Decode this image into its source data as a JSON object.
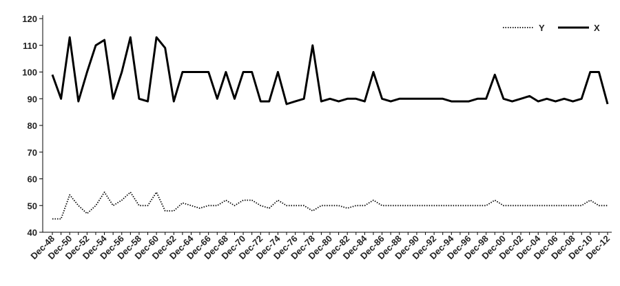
{
  "chart_data": {
    "type": "line",
    "categories": [
      "Dec-48",
      null,
      "Dec-50",
      null,
      "Dec-52",
      null,
      "Dec-54",
      null,
      "Dec-56",
      null,
      "Dec-58",
      null,
      "Dec-60",
      null,
      "Dec-62",
      null,
      "Dec-64",
      null,
      "Dec-66",
      null,
      "Dec-68",
      null,
      "Dec-70",
      null,
      "Dec-72",
      null,
      "Dec-74",
      null,
      "Dec-76",
      null,
      "Dec-78",
      null,
      "Dec-80",
      null,
      "Dec-82",
      null,
      "Dec-84",
      null,
      "Dec-86",
      null,
      "Dec-88",
      null,
      "Dec-90",
      null,
      "Dec-92",
      null,
      "Dec-94",
      null,
      "Dec-96",
      null,
      "Dec-98",
      null,
      "Dec-00",
      null,
      "Dec-02",
      null,
      "Dec-04",
      null,
      "Dec-06",
      null,
      "Dec-08",
      null,
      "Dec-10",
      null,
      "Dec-12"
    ],
    "series": [
      {
        "name": "Y",
        "color": "#000000",
        "style": "dotted",
        "values": [
          45,
          45,
          54,
          50,
          47,
          50,
          55,
          50,
          52,
          55,
          50,
          50,
          55,
          48,
          48,
          51,
          50,
          49,
          50,
          50,
          52,
          50,
          52,
          52,
          50,
          49,
          52,
          50,
          50,
          50,
          48,
          50,
          50,
          50,
          49,
          50,
          50,
          52,
          50,
          50,
          50,
          50,
          50,
          50,
          50,
          50,
          50,
          50,
          50,
          50,
          50,
          52,
          50,
          50,
          50,
          50,
          50,
          50,
          50,
          50,
          50,
          50,
          52,
          50,
          50
        ]
      },
      {
        "name": "X",
        "color": "#000000",
        "style": "solid",
        "values": [
          99,
          90,
          113,
          89,
          100,
          110,
          112,
          90,
          100,
          113,
          90,
          89,
          113,
          109,
          89,
          100,
          100,
          100,
          100,
          90,
          100,
          90,
          100,
          100,
          89,
          89,
          100,
          88,
          89,
          90,
          110,
          89,
          90,
          89,
          90,
          90,
          89,
          100,
          90,
          89,
          90,
          90,
          90,
          90,
          90,
          90,
          89,
          89,
          89,
          90,
          90,
          99,
          90,
          89,
          90,
          91,
          89,
          90,
          89,
          90,
          89,
          90,
          100,
          100,
          88
        ]
      }
    ],
    "ylim": [
      40,
      120
    ],
    "yticks": [
      40,
      50,
      60,
      70,
      80,
      90,
      100,
      110,
      120
    ],
    "legend": "top-right",
    "grid": false
  }
}
